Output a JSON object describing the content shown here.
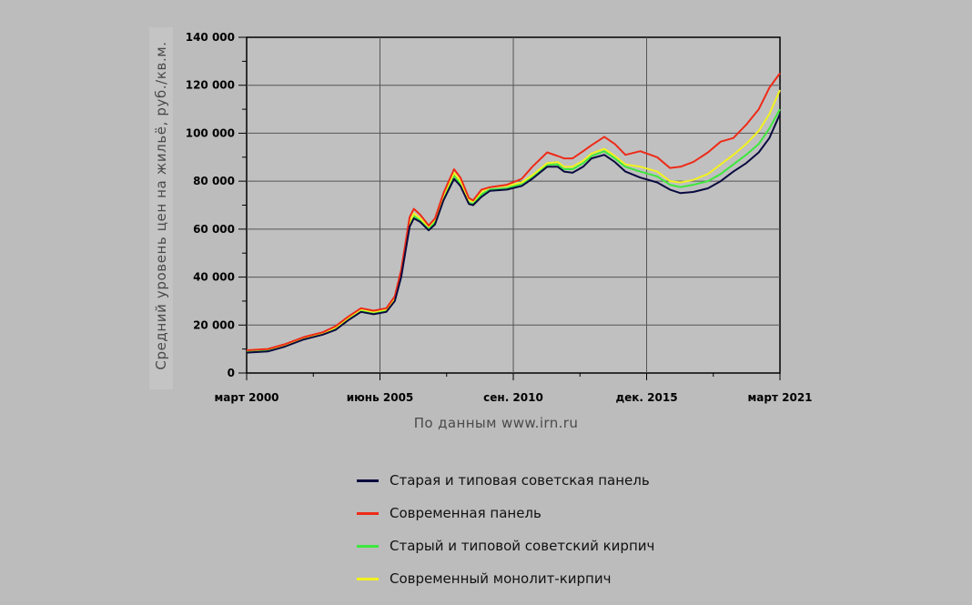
{
  "chart_data": {
    "type": "line",
    "ylabel": "Средний уровень цен на жильё, руб./кв.м.",
    "source_note": "По данным www.irn.ru",
    "ylim": [
      0,
      140000
    ],
    "yticks": [
      0,
      20000,
      40000,
      60000,
      80000,
      100000,
      120000,
      140000
    ],
    "ytick_labels": [
      "0",
      "20 000",
      "40 000",
      "60 000",
      "80 000",
      "100 000",
      "120 000",
      "140 000"
    ],
    "xlim": [
      "2000-03",
      "2021-03"
    ],
    "xtick_labels": [
      "март 2000",
      "июнь 2005",
      "сен. 2010",
      "дек. 2015",
      "март 2021"
    ],
    "xtick_dates": [
      "2000-03",
      "2005-06",
      "2010-09",
      "2015-12",
      "2021-03"
    ],
    "grid": true,
    "legend_position": "bottom",
    "series": [
      {
        "name": "Старая и типовая советская панель",
        "color": "#0a0a40",
        "points": [
          [
            "2000-03",
            8500
          ],
          [
            "2001-01",
            9000
          ],
          [
            "2001-09",
            11000
          ],
          [
            "2002-06",
            14000
          ],
          [
            "2003-03",
            16000
          ],
          [
            "2003-09",
            18000
          ],
          [
            "2004-03",
            22000
          ],
          [
            "2004-09",
            25500
          ],
          [
            "2005-03",
            24500
          ],
          [
            "2005-09",
            25500
          ],
          [
            "2006-01",
            30000
          ],
          [
            "2006-04",
            40000
          ],
          [
            "2006-08",
            61000
          ],
          [
            "2006-10",
            64500
          ],
          [
            "2007-01",
            63000
          ],
          [
            "2007-05",
            59500
          ],
          [
            "2007-08",
            62000
          ],
          [
            "2007-12",
            72000
          ],
          [
            "2008-05",
            81000
          ],
          [
            "2008-08",
            78000
          ],
          [
            "2008-12",
            70500
          ],
          [
            "2009-02",
            70000
          ],
          [
            "2009-06",
            73500
          ],
          [
            "2009-10",
            76000
          ],
          [
            "2010-06",
            76500
          ],
          [
            "2011-01",
            78000
          ],
          [
            "2011-06",
            81000
          ],
          [
            "2012-01",
            86000
          ],
          [
            "2012-06",
            86000
          ],
          [
            "2012-09",
            84000
          ],
          [
            "2013-01",
            83500
          ],
          [
            "2013-06",
            86000
          ],
          [
            "2013-10",
            89500
          ],
          [
            "2014-04",
            91000
          ],
          [
            "2014-09",
            88000
          ],
          [
            "2015-02",
            84000
          ],
          [
            "2015-09",
            81500
          ],
          [
            "2016-05",
            79500
          ],
          [
            "2016-11",
            76500
          ],
          [
            "2017-04",
            75000
          ],
          [
            "2017-10",
            75500
          ],
          [
            "2018-05",
            77000
          ],
          [
            "2018-11",
            80000
          ],
          [
            "2019-05",
            84000
          ],
          [
            "2019-11",
            87500
          ],
          [
            "2020-05",
            92000
          ],
          [
            "2020-10",
            98000
          ],
          [
            "2021-03",
            108000
          ]
        ]
      },
      {
        "name": "Современная панель",
        "color": "#ee2a18",
        "points": [
          [
            "2000-03",
            9500
          ],
          [
            "2001-01",
            10000
          ],
          [
            "2001-09",
            12000
          ],
          [
            "2002-06",
            15000
          ],
          [
            "2003-03",
            17000
          ],
          [
            "2003-09",
            19500
          ],
          [
            "2004-03",
            23500
          ],
          [
            "2004-09",
            27000
          ],
          [
            "2005-03",
            26000
          ],
          [
            "2005-09",
            27000
          ],
          [
            "2006-01",
            32000
          ],
          [
            "2006-04",
            43000
          ],
          [
            "2006-08",
            65000
          ],
          [
            "2006-10",
            68500
          ],
          [
            "2007-01",
            66000
          ],
          [
            "2007-05",
            61500
          ],
          [
            "2007-08",
            64500
          ],
          [
            "2007-12",
            75000
          ],
          [
            "2008-05",
            85000
          ],
          [
            "2008-08",
            81500
          ],
          [
            "2008-12",
            73000
          ],
          [
            "2009-02",
            72000
          ],
          [
            "2009-06",
            76500
          ],
          [
            "2009-10",
            77500
          ],
          [
            "2010-06",
            78500
          ],
          [
            "2011-01",
            81000
          ],
          [
            "2011-06",
            86000
          ],
          [
            "2012-01",
            92000
          ],
          [
            "2012-06",
            90500
          ],
          [
            "2012-09",
            89500
          ],
          [
            "2013-01",
            89500
          ],
          [
            "2013-06",
            92500
          ],
          [
            "2013-10",
            95000
          ],
          [
            "2014-04",
            98500
          ],
          [
            "2014-09",
            95500
          ],
          [
            "2015-02",
            91000
          ],
          [
            "2015-09",
            92500
          ],
          [
            "2016-05",
            90000
          ],
          [
            "2016-11",
            85500
          ],
          [
            "2017-04",
            86000
          ],
          [
            "2017-10",
            88000
          ],
          [
            "2018-05",
            92000
          ],
          [
            "2018-11",
            96500
          ],
          [
            "2019-05",
            98000
          ],
          [
            "2019-11",
            103500
          ],
          [
            "2020-05",
            110000
          ],
          [
            "2020-10",
            119000
          ],
          [
            "2021-03",
            125000
          ]
        ]
      },
      {
        "name": "Старый и типовой советский кирпич",
        "color": "#3ce83c",
        "points": [
          [
            "2000-03",
            9000
          ],
          [
            "2001-01",
            9500
          ],
          [
            "2001-09",
            11500
          ],
          [
            "2002-06",
            14500
          ],
          [
            "2003-03",
            16500
          ],
          [
            "2003-09",
            18500
          ],
          [
            "2004-03",
            22500
          ],
          [
            "2004-09",
            26000
          ],
          [
            "2005-03",
            25000
          ],
          [
            "2005-09",
            26000
          ],
          [
            "2006-01",
            30500
          ],
          [
            "2006-04",
            41000
          ],
          [
            "2006-08",
            62000
          ],
          [
            "2006-10",
            65500
          ],
          [
            "2007-01",
            63500
          ],
          [
            "2007-05",
            60000
          ],
          [
            "2007-08",
            63000
          ],
          [
            "2007-12",
            73000
          ],
          [
            "2008-05",
            82500
          ],
          [
            "2008-08",
            79000
          ],
          [
            "2008-12",
            71000
          ],
          [
            "2009-02",
            70500
          ],
          [
            "2009-06",
            74500
          ],
          [
            "2009-10",
            76500
          ],
          [
            "2010-06",
            77000
          ],
          [
            "2011-01",
            79000
          ],
          [
            "2011-06",
            82000
          ],
          [
            "2012-01",
            87000
          ],
          [
            "2012-06",
            87000
          ],
          [
            "2012-09",
            85000
          ],
          [
            "2013-01",
            85000
          ],
          [
            "2013-06",
            87500
          ],
          [
            "2013-10",
            90500
          ],
          [
            "2014-04",
            92500
          ],
          [
            "2014-09",
            89500
          ],
          [
            "2015-02",
            86000
          ],
          [
            "2015-09",
            84000
          ],
          [
            "2016-05",
            82000
          ],
          [
            "2016-11",
            78500
          ],
          [
            "2017-04",
            77500
          ],
          [
            "2017-10",
            78500
          ],
          [
            "2018-05",
            80000
          ],
          [
            "2018-11",
            83000
          ],
          [
            "2019-05",
            87000
          ],
          [
            "2019-11",
            91000
          ],
          [
            "2020-05",
            95500
          ],
          [
            "2020-10",
            102000
          ],
          [
            "2021-03",
            110000
          ]
        ]
      },
      {
        "name": "Современный монолит-кирпич",
        "color": "#f2f21e",
        "points": [
          [
            "2000-03",
            9500
          ],
          [
            "2001-01",
            10000
          ],
          [
            "2001-09",
            11500
          ],
          [
            "2002-06",
            14500
          ],
          [
            "2003-03",
            16500
          ],
          [
            "2003-09",
            19000
          ],
          [
            "2004-03",
            23000
          ],
          [
            "2004-09",
            26500
          ],
          [
            "2005-03",
            25500
          ],
          [
            "2005-09",
            26500
          ],
          [
            "2006-01",
            31000
          ],
          [
            "2006-04",
            42000
          ],
          [
            "2006-08",
            63000
          ],
          [
            "2006-10",
            66500
          ],
          [
            "2007-01",
            64500
          ],
          [
            "2007-05",
            61000
          ],
          [
            "2007-08",
            64000
          ],
          [
            "2007-12",
            74000
          ],
          [
            "2008-05",
            83500
          ],
          [
            "2008-08",
            80000
          ],
          [
            "2008-12",
            72000
          ],
          [
            "2009-02",
            71500
          ],
          [
            "2009-06",
            75500
          ],
          [
            "2009-10",
            77500
          ],
          [
            "2010-06",
            78000
          ],
          [
            "2011-01",
            79500
          ],
          [
            "2011-06",
            82500
          ],
          [
            "2012-01",
            87500
          ],
          [
            "2012-06",
            88000
          ],
          [
            "2012-09",
            86000
          ],
          [
            "2013-01",
            86000
          ],
          [
            "2013-06",
            88500
          ],
          [
            "2013-10",
            91500
          ],
          [
            "2014-04",
            93500
          ],
          [
            "2014-09",
            90500
          ],
          [
            "2015-02",
            87000
          ],
          [
            "2015-09",
            86000
          ],
          [
            "2016-05",
            84000
          ],
          [
            "2016-11",
            80000
          ],
          [
            "2017-04",
            79500
          ],
          [
            "2017-10",
            80500
          ],
          [
            "2018-05",
            83000
          ],
          [
            "2018-11",
            87000
          ],
          [
            "2019-05",
            91000
          ],
          [
            "2019-11",
            95500
          ],
          [
            "2020-05",
            101000
          ],
          [
            "2020-10",
            108000
          ],
          [
            "2021-03",
            118000
          ]
        ]
      }
    ]
  }
}
